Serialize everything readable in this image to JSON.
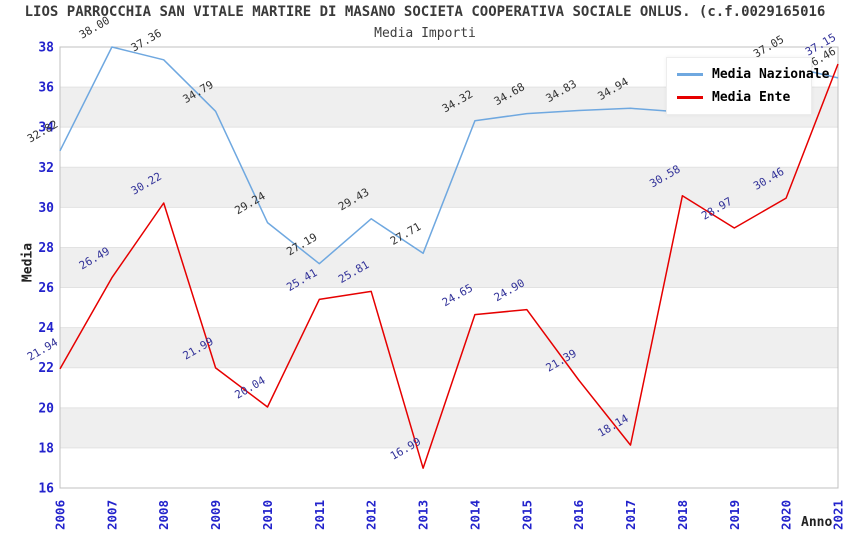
{
  "header": {
    "title": "LIOS PARROCCHIA SAN VITALE MARTIRE DI MASANO SOCIETA COOPERATIVA SOCIALE ONLUS. (c.f.0029165016",
    "subtitle": "Media Importi"
  },
  "legend": {
    "items": [
      {
        "label": "Media Nazionale",
        "color": "#6FA8E0"
      },
      {
        "label": "Media Ente",
        "color": "#E60000"
      }
    ]
  },
  "chart_data": {
    "type": "line",
    "title": "Media Importi",
    "xlabel": "Anno",
    "ylabel": "Media",
    "x": [
      2006,
      2007,
      2008,
      2009,
      2010,
      2011,
      2012,
      2013,
      2014,
      2015,
      2016,
      2017,
      2018,
      2019,
      2020,
      2021
    ],
    "series": [
      {
        "name": "Media Nazionale",
        "color": "#6FA8E0",
        "label_color": "#333333",
        "values": [
          32.82,
          38.0,
          37.36,
          34.79,
          29.24,
          27.19,
          29.43,
          27.71,
          34.32,
          34.68,
          34.83,
          34.94,
          34.75,
          34.78,
          37.05,
          36.46
        ],
        "point_labels": [
          "32.82",
          "38.00",
          "37.36",
          "34.79",
          "29.24",
          "27.19",
          "29.43",
          "27.71",
          "34.32",
          "34.68",
          "34.83",
          "34.94",
          null,
          null,
          "37.05",
          "36.46"
        ]
      },
      {
        "name": "Media Ente",
        "color": "#E60000",
        "label_color": "#333399",
        "values": [
          21.94,
          26.49,
          30.22,
          21.99,
          20.04,
          25.41,
          25.81,
          16.99,
          24.65,
          24.9,
          21.39,
          18.14,
          30.58,
          28.97,
          30.46,
          37.15
        ],
        "point_labels": [
          "21.94",
          "26.49",
          "30.22",
          "21.99",
          "20.04",
          "25.41",
          "25.81",
          "16.99",
          "24.65",
          "24.90",
          "21.39",
          "18.14",
          "30.58",
          "28.97",
          "30.46",
          "37.15"
        ]
      }
    ],
    "ylim": [
      16,
      38
    ],
    "ytick_step": 2,
    "yticks": [
      16,
      18,
      20,
      22,
      24,
      26,
      28,
      30,
      32,
      34,
      36,
      38
    ],
    "grid": "alternating horizontal gray bands every 2 units",
    "legend_position": "top-right",
    "styles": {
      "tick_label_color": "#2323CC",
      "band_color": "#EFEFEF",
      "gridline_color": "#E2E2E2",
      "border_color": "#C0C0C0"
    }
  }
}
